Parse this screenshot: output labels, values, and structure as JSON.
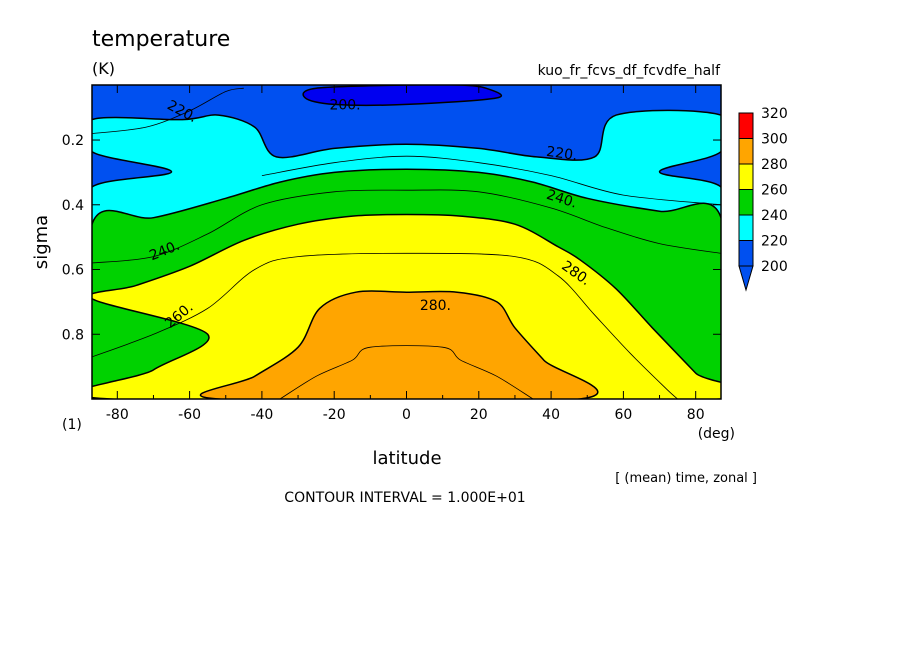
{
  "title": "temperature",
  "units": "(K)",
  "run_name": "kuo_fr_fcvs_df_fcvdfe_half",
  "footer_note": "[ (mean) time, zonal ]",
  "contour_interval_text": "CONTOUR INTERVAL = 1.000E+01",
  "colors": {
    "c200": "#0050f0",
    "c220": "#00ffff",
    "c240": "#00d200",
    "c260": "#ffff00",
    "c280": "#ffa500",
    "c300": "#ff0000",
    "below200": "#0000f0"
  },
  "chart_data": {
    "type": "contour",
    "xlabel": "latitude",
    "xunit": "(deg)",
    "ylabel": "sigma",
    "yunit": "(1)",
    "xlim": [
      -87,
      87
    ],
    "ylim": [
      1.0,
      0.03
    ],
    "xticks": [
      -80,
      -60,
      -40,
      -20,
      0,
      20,
      40,
      60,
      80
    ],
    "xtick_labels": [
      "-80",
      "-60",
      "-40",
      "-20",
      "0",
      "20",
      "40",
      "60",
      "80"
    ],
    "yticks": [
      0.2,
      0.4,
      0.6,
      0.8
    ],
    "ytick_labels": [
      "0.2",
      "0.4",
      "0.6",
      "0.8"
    ],
    "levels": [
      200,
      220,
      240,
      260,
      280,
      300,
      320
    ],
    "colorbar_labels": [
      "200",
      "220",
      "240",
      "260",
      "280",
      "300",
      "320"
    ],
    "contour_labels": [
      {
        "text": "220.",
        "lat": -62,
        "sigma": 0.11,
        "rot": 28
      },
      {
        "text": "200.",
        "lat": -17,
        "sigma": 0.09,
        "rot": 0
      },
      {
        "text": "220.",
        "lat": 43,
        "sigma": 0.24,
        "rot": 8
      },
      {
        "text": "240.",
        "lat": 43,
        "sigma": 0.38,
        "rot": 18
      },
      {
        "text": "240.",
        "lat": -67,
        "sigma": 0.54,
        "rot": -22
      },
      {
        "text": "280.",
        "lat": 47,
        "sigma": 0.61,
        "rot": 35
      },
      {
        "text": "280.",
        "lat": 8,
        "sigma": 0.71,
        "rot": 0
      },
      {
        "text": "260.",
        "lat": -63,
        "sigma": 0.74,
        "rot": -40
      }
    ],
    "regions": [
      {
        "level": 220,
        "points": [
          [
            -87,
            0.137
          ],
          [
            -62,
            0.137
          ],
          [
            -52,
            0.123
          ],
          [
            -42,
            0.16
          ],
          [
            -36,
            0.252
          ],
          [
            -20,
            0.226
          ],
          [
            0,
            0.213
          ],
          [
            20,
            0.226
          ],
          [
            36,
            0.252
          ],
          [
            52,
            0.252
          ],
          [
            58,
            0.123
          ],
          [
            87,
            0.123
          ],
          [
            87,
            0.236
          ],
          [
            70,
            0.298
          ],
          [
            87,
            0.345
          ],
          [
            87,
            0.48
          ],
          [
            -87,
            0.48
          ],
          [
            -87,
            0.345
          ],
          [
            -65,
            0.298
          ],
          [
            -87,
            0.236
          ]
        ]
      },
      {
        "level": 240,
        "points": [
          [
            -87,
            0.46
          ],
          [
            -70,
            0.44
          ],
          [
            -50,
            0.38
          ],
          [
            -35,
            0.33
          ],
          [
            -20,
            0.3
          ],
          [
            0,
            0.29
          ],
          [
            20,
            0.3
          ],
          [
            35,
            0.33
          ],
          [
            50,
            0.38
          ],
          [
            70,
            0.42
          ],
          [
            87,
            0.44
          ],
          [
            87,
            1.0
          ],
          [
            -87,
            1.0
          ]
        ]
      },
      {
        "level": 260,
        "points": [
          [
            -87,
            0.69
          ],
          [
            -75,
            0.65
          ],
          [
            -60,
            0.59
          ],
          [
            -45,
            0.51
          ],
          [
            -30,
            0.46
          ],
          [
            -15,
            0.435
          ],
          [
            0,
            0.43
          ],
          [
            15,
            0.435
          ],
          [
            30,
            0.46
          ],
          [
            42,
            0.53
          ],
          [
            48,
            0.57
          ],
          [
            58,
            0.66
          ],
          [
            68,
            0.78
          ],
          [
            80,
            0.92
          ],
          [
            87,
            1.0
          ],
          [
            -82,
            1.0
          ],
          [
            -70,
            0.91
          ],
          [
            -55,
            0.8
          ]
        ]
      },
      {
        "level": 280,
        "points": [
          [
            -52,
            1.0
          ],
          [
            -42,
            0.93
          ],
          [
            -30,
            0.84
          ],
          [
            -24,
            0.72
          ],
          [
            -14,
            0.67
          ],
          [
            0,
            0.67
          ],
          [
            14,
            0.67
          ],
          [
            25,
            0.7
          ],
          [
            30,
            0.78
          ],
          [
            38,
            0.88
          ],
          [
            48,
            1.0
          ]
        ]
      },
      {
        "level": 200,
        "points": [
          [
            -28,
            0.07
          ],
          [
            -25,
            0.04
          ],
          [
            0,
            0.03
          ],
          [
            15,
            0.03
          ],
          [
            22,
            0.04
          ],
          [
            25,
            0.07
          ],
          [
            0,
            0.09
          ],
          [
            -20,
            0.09
          ]
        ]
      }
    ],
    "contour_lines": [
      {
        "level": 230,
        "points": [
          [
            -87,
            0.18
          ],
          [
            -72,
            0.16
          ],
          [
            -60,
            0.11
          ],
          [
            -50,
            0.05
          ],
          [
            -45,
            0.04
          ]
        ]
      },
      {
        "level": 230,
        "points": [
          [
            -40,
            0.31
          ],
          [
            -20,
            0.27
          ],
          [
            0,
            0.25
          ],
          [
            20,
            0.27
          ],
          [
            40,
            0.31
          ],
          [
            60,
            0.37
          ],
          [
            87,
            0.4
          ]
        ]
      },
      {
        "level": 250,
        "points": [
          [
            -87,
            0.58
          ],
          [
            -70,
            0.56
          ],
          [
            -55,
            0.49
          ],
          [
            -40,
            0.4
          ],
          [
            -20,
            0.36
          ],
          [
            0,
            0.355
          ],
          [
            20,
            0.36
          ],
          [
            40,
            0.41
          ],
          [
            55,
            0.47
          ],
          [
            70,
            0.52
          ],
          [
            87,
            0.55
          ]
        ]
      },
      {
        "level": 270,
        "points": [
          [
            -87,
            0.87
          ],
          [
            -70,
            0.8
          ],
          [
            -55,
            0.72
          ],
          [
            -42,
            0.6
          ],
          [
            -30,
            0.56
          ],
          [
            0,
            0.55
          ],
          [
            30,
            0.56
          ],
          [
            42,
            0.62
          ],
          [
            52,
            0.74
          ],
          [
            62,
            0.86
          ],
          [
            72,
            0.97
          ],
          [
            75,
            1.0
          ]
        ]
      },
      {
        "level": 290,
        "points": [
          [
            -35,
            1.0
          ],
          [
            -25,
            0.93
          ],
          [
            -15,
            0.88
          ],
          [
            -10,
            0.84
          ],
          [
            10,
            0.84
          ],
          [
            15,
            0.88
          ],
          [
            25,
            0.93
          ],
          [
            35,
            1.0
          ]
        ]
      }
    ]
  }
}
